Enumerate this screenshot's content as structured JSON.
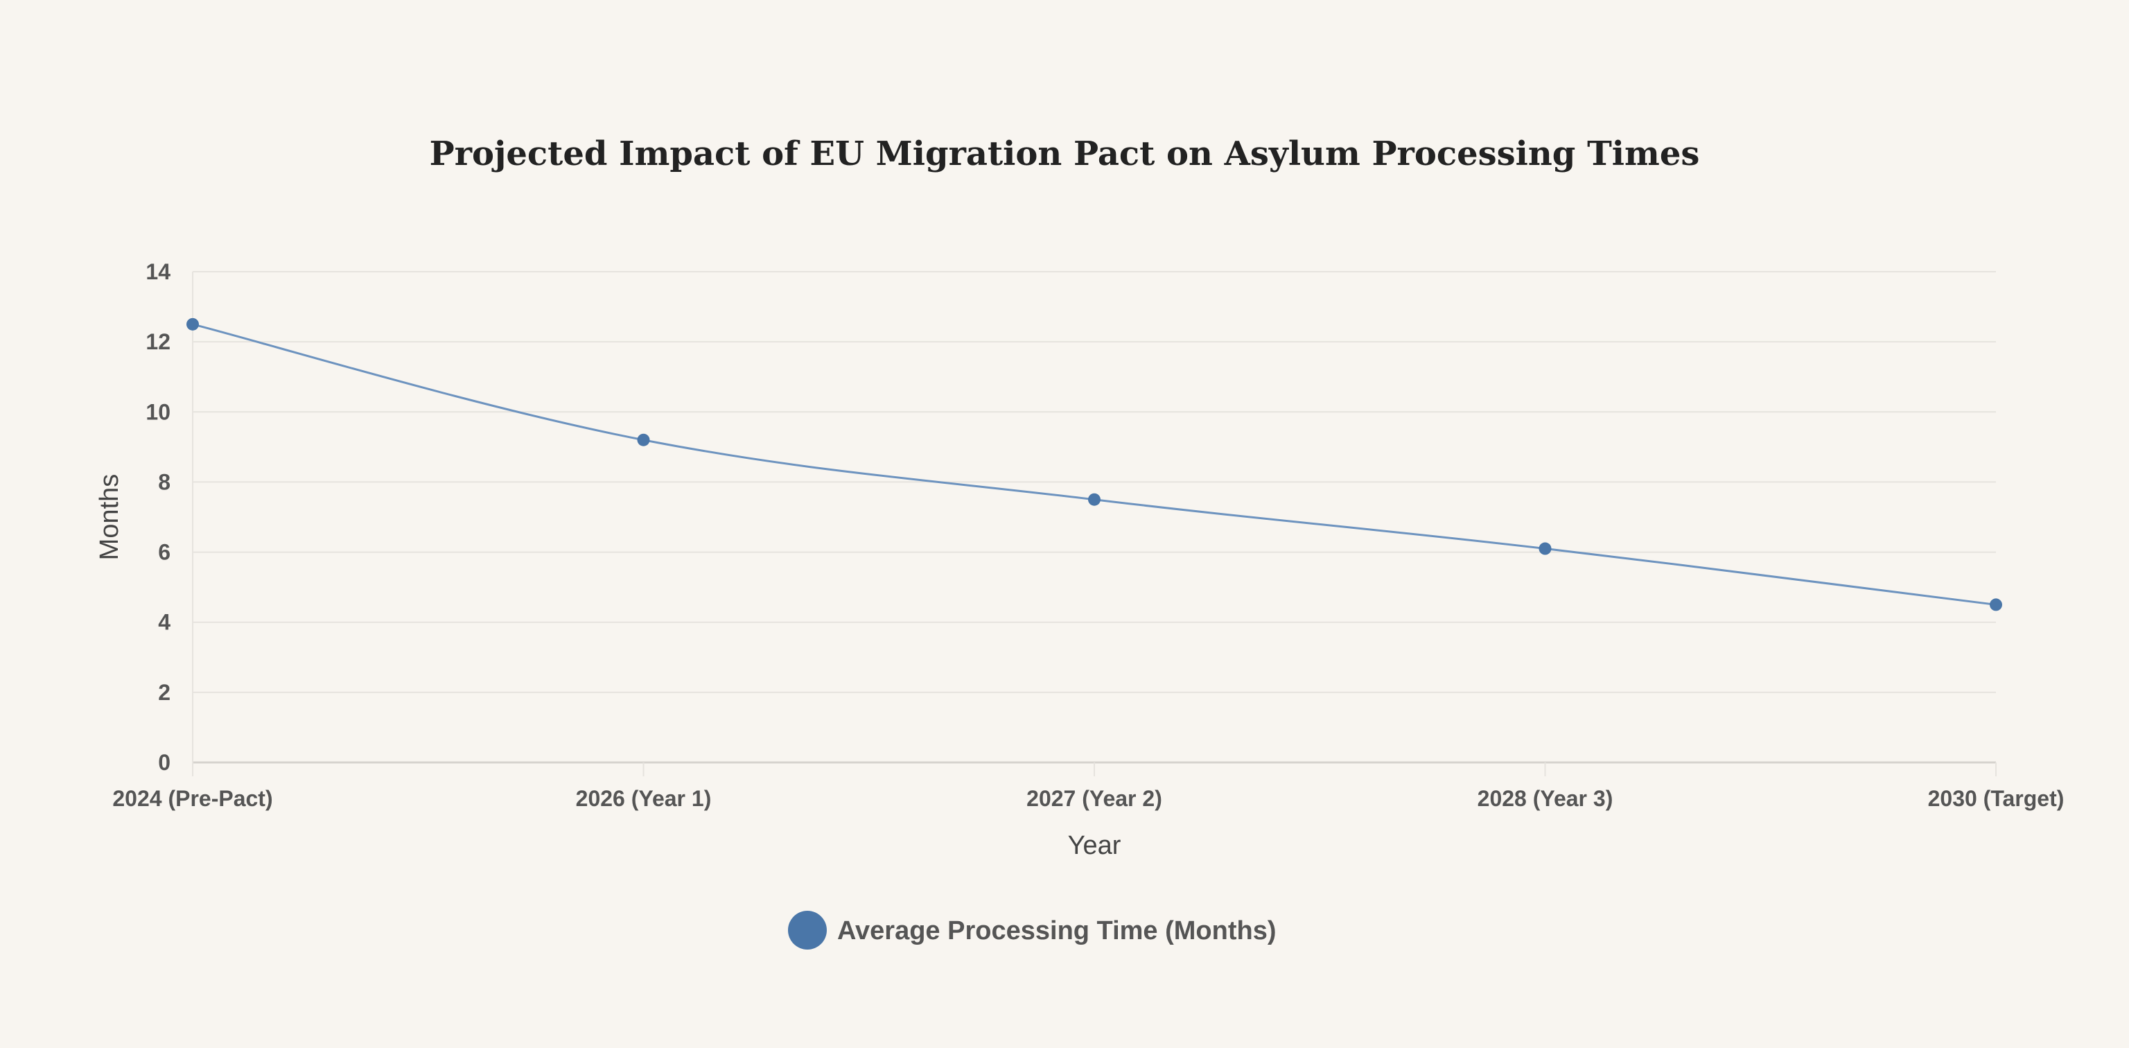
{
  "chart_data": {
    "type": "line",
    "title": "Projected Impact of EU Migration Pact on Asylum Processing Times",
    "xlabel": "Year",
    "ylabel": "Months",
    "categories": [
      "2024 (Pre-Pact)",
      "2026 (Year 1)",
      "2027 (Year 2)",
      "2028 (Year 3)",
      "2030 (Target)"
    ],
    "series": [
      {
        "name": "Average Processing Time (Months)",
        "values": [
          12.5,
          9.2,
          7.5,
          6.1,
          4.5
        ],
        "color": "#4a76a8"
      }
    ],
    "ylim": [
      0,
      14
    ],
    "yticks": [
      0,
      2,
      4,
      6,
      8,
      10,
      12,
      14
    ],
    "grid": true,
    "legend_position": "bottom-center"
  }
}
